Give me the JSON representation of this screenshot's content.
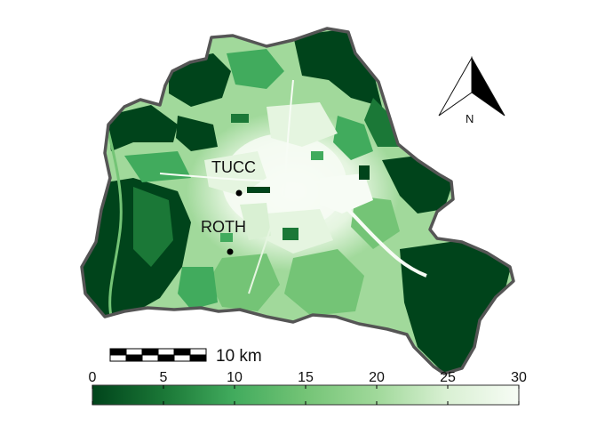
{
  "stations": [
    {
      "name": "TUCC"
    },
    {
      "name": "ROTH"
    }
  ],
  "north_arrow": {
    "label": "N"
  },
  "scale_bar": {
    "label": "10 km"
  },
  "legend": {
    "ticks": [
      "0",
      "5",
      "10",
      "15",
      "20",
      "25",
      "30"
    ],
    "min": 0,
    "max": 30,
    "color_low": "#00441b",
    "color_mid": "#74c476",
    "color_high": "#f7fcf5"
  },
  "colors": {
    "boundary": "#555555",
    "dark_green": "#00441b",
    "mid_green": "#41ab5d",
    "light_green": "#a1d99b",
    "urban_white": "#f4fbf2"
  }
}
